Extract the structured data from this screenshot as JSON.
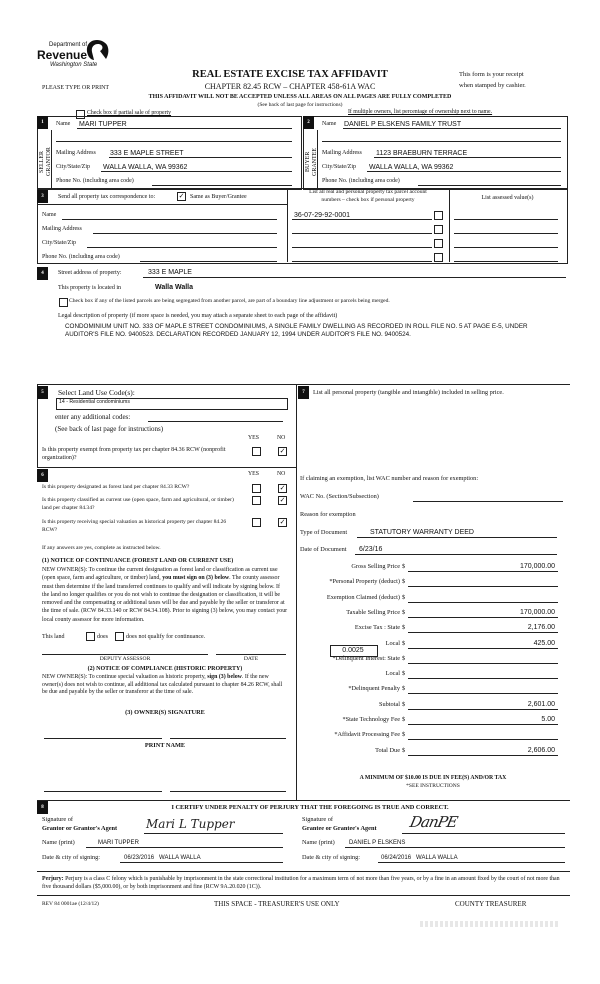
{
  "header": {
    "dept_line1": "Department of",
    "dept_line2": "Revenue",
    "dept_line3": "Washington State",
    "title": "REAL ESTATE EXCISE TAX AFFIDAVIT",
    "subtitle": "CHAPTER 82.45 RCW – CHAPTER 458-61A WAC",
    "please_print": "PLEASE TYPE OR PRINT",
    "receipt_line1": "This form is your receipt",
    "receipt_line2": "when stamped by cashier.",
    "warning": "THIS AFFIDAVIT WILL NOT BE ACCEPTED UNLESS ALL AREAS ON ALL PAGES ARE FULLY COMPLETED",
    "instructions_note": "(See back of last page for instructions)",
    "partial_sale_label": "Check box if partial sale of property",
    "partial_sale_checked": false,
    "multiple_owners_note": "If multiple owners, list percentage of ownership next to name."
  },
  "seller": {
    "section": "1",
    "side_label": "SELLER GRANTOR",
    "name_label": "Name",
    "name": "MARI TUPPER",
    "mailing_label": "Mailing Address",
    "mailing": "333 E MAPLE STREET",
    "city_label": "City/State/Zip",
    "city": "WALLA WALLA, WA  99362",
    "phone_label": "Phone No. (including area code)"
  },
  "buyer": {
    "section": "2",
    "side_label": "BUYER GRANTEE",
    "name_label": "Name",
    "name": "DANIEL P ELSKENS FAMILY TRUST",
    "mailing_label": "Mailing Address",
    "mailing": "1123 BRAEBURN TERRACE",
    "city_label": "City/State/Zip",
    "city": "WALLA WALLA, WA  99362",
    "phone_label": "Phone No. (including area code)"
  },
  "correspondence": {
    "section": "3",
    "label": "Send all property tax correspondence to:",
    "same_label": "Same as Buyer/Grantee",
    "same_checked": true,
    "name_label": "Name",
    "mailing_label": "Mailing Address",
    "city_label": "City/State/Zip",
    "phone_label": "Phone No. (including area code)"
  },
  "parcels": {
    "header_line1": "List all real and personal property tax parcel account",
    "header_line2": "numbers – check box if personal property",
    "assessed_header": "List assessed value(s)",
    "numbers": [
      "36-07-29-92-0001",
      "",
      "",
      ""
    ]
  },
  "property": {
    "section": "4",
    "street_label": "Street address of property:",
    "street": "333 E MAPLE",
    "located_label": "This property is located in",
    "located": "Walla Walla",
    "segregated_label": "Check box if any of the listed parcels are being segregated from another parcel, are part of a boundary line adjustment or parcels being merged.",
    "legal_label": "Legal description of property (if more space is needed, you may attach a separate sheet to each page of the affidavit)",
    "legal_description": "CONDOMINIUM UNIT NO. 333 OF MAPLE STREET CONDOMINIUMS, A SINGLE FAMILY DWELLING AS RECORDED IN ROLL FILE NO. 5 AT PAGE E-5, UNDER AUDITOR'S FILE NO. 9400523. DECLARATION RECORDED JANUARY 12, 1994 UNDER AUDITOR'S FILE NO. 9400524."
  },
  "land_use": {
    "section": "5",
    "label": "Select Land Use Code(s):",
    "code": "14 - Residential condominiums",
    "additional_label": "enter any additional codes:",
    "instructions": "(See back of last page for instructions)",
    "yes": "YES",
    "no": "NO",
    "exempt_question": "Is this property exempt from property tax per chapter 84.36 RCW (nonprofit organization)?",
    "exempt_answer": "NO"
  },
  "section6": {
    "section": "6",
    "yes": "YES",
    "no": "NO",
    "questions": [
      {
        "text": "Is this property designated as forest land per chapter 84.33 RCW?",
        "answer": "NO"
      },
      {
        "text": "Is this property classified as current use (open space, farm and agricultural, or timber) land per chapter 84.34?",
        "answer": "NO"
      },
      {
        "text": "Is this property receiving special valuation as historical property per chapter 84.26 RCW?",
        "answer": "NO"
      }
    ],
    "any_yes_note": "If any answers are yes, complete as instructed below.",
    "notice1_title": "(1) NOTICE OF CONTINUANCE (FOREST LAND OR CURRENT USE)",
    "notice1_text_a": "NEW OWNER(S): To continue the current designation as forest land or classification as current use (open space, farm and agriculture, or timber) land,",
    "notice1_text_bold": "you must sign on (3) below",
    "notice1_text_b": ". The county assessor must then determine if the land transferred continues to qualify and will indicate by signing below. If the land no longer qualifies or you do not wish to continue the designation or classification, it will be removed and the compensating or additional taxes will be due and payable by the seller or transferor at the time of sale. (RCW 84.33.140 or RCW 84.34.108). Prior to signing (3) below, you may contact your local county assessor for more information.",
    "this_land_label": "This land",
    "does_label": "does",
    "does_not_label": "does not qualify for continuance.",
    "deputy_assessor_label": "DEPUTY ASSESSOR",
    "date_label": "DATE",
    "notice2_title": "(2) NOTICE OF COMPLIANCE (HISTORIC PROPERTY)",
    "notice2_text_a": "NEW OWNER(S): To continue special valuation as historic property,",
    "notice2_text_bold": "sign (3) below",
    "notice2_text_b": ". If the new owner(s) does not wish to continue, all additional tax calculated pursuant to chapter 84.26 RCW, shall be due and payable by the seller or transferor at the time of sale.",
    "owner_signature_label": "(3) OWNER(S) SIGNATURE",
    "print_name_label": "PRINT NAME"
  },
  "section7": {
    "section": "7",
    "personal_property_label": "List all personal property (tangible and intangible) included in selling price.",
    "exemption_label": "If claiming an exemption, list WAC number and reason for exemption:",
    "wac_label": "WAC No. (Section/Subsection)",
    "reason_label": "Reason for exemption"
  },
  "tax": {
    "doc_type_label": "Type of Document",
    "doc_type": "STATUTORY WARRANTY DEED",
    "doc_date_label": "Date of Document",
    "doc_date": "6/23/16",
    "currency": "$",
    "local_rate": "0.0025",
    "rows": [
      {
        "label": "Gross Selling Price",
        "value": "170,000.00"
      },
      {
        "label": "*Personal Property (deduct)",
        "value": ""
      },
      {
        "label": "Exemption Claimed (deduct)",
        "value": ""
      },
      {
        "label": "Taxable Selling Price",
        "value": "170,000.00"
      },
      {
        "label": "Excise Tax : State",
        "value": "2,176.00"
      },
      {
        "label": "Local",
        "value": "425.00"
      },
      {
        "label": "*Delinquent Interest: State",
        "value": ""
      },
      {
        "label": "Local",
        "value": ""
      },
      {
        "label": "*Delinquent Penalty",
        "value": ""
      },
      {
        "label": "Subtotal",
        "value": "2,601.00"
      },
      {
        "label": "*State Technology Fee",
        "value": "5.00"
      },
      {
        "label": "*Affidavit Processing Fee",
        "value": ""
      },
      {
        "label": "Total Due",
        "value": "2,606.00"
      }
    ],
    "minimum_note": "A MINIMUM OF $10.00 IS DUE IN FEE(S) AND/OR TAX",
    "see_instructions": "*SEE INSTRUCTIONS"
  },
  "certification": {
    "section": "8",
    "statement": "I CERTIFY UNDER PENALTY OF PERJURY THAT THE FOREGOING IS TRUE AND CORRECT.",
    "signature_of": "Signature of",
    "grantor_agent_label": "Grantor or Grantor's Agent",
    "grantor_signature": "Mari L Tupper",
    "grantee_agent_label": "Grantee or Grantee's Agent",
    "grantee_signature": "DanPE",
    "name_print_label": "Name (print)",
    "grantor_name": "MARI TUPPER",
    "grantee_name": "DANIEL P ELSKENS",
    "date_city_label": "Date & city of signing:",
    "grantor_date_city": "06/23/2016   WALLA WALLA",
    "grantee_date_city": "06/24/2016   WALLA WALLA"
  },
  "perjury": {
    "label": "Perjury:",
    "text": "Perjury is a class C felony which is punishable by imprisonment in the state correctional institution for a maximum term of not more than five years, or by a fine in an amount fixed by the court of not more than five thousand dollars ($5,000.00), or by both imprisonment and fine (RCW 9A.20.020 (1C))."
  },
  "footer": {
    "form_number": "REV 84 0001ae (12/4/12)",
    "treasurer_space": "THIS SPACE - TREASURER'S USE ONLY",
    "county_treasurer": "COUNTY TREASURER"
  }
}
